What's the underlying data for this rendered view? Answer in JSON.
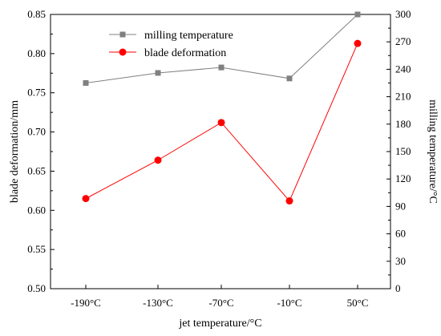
{
  "chart_data": {
    "type": "line",
    "categories": [
      "-190°C",
      "-130°C",
      "-70°C",
      "-10°C",
      "50°C"
    ],
    "xlabel": "jet temperature/°C",
    "ylabel_left": "blade deformation/mm",
    "ylabel_right": "milling temperature/°C",
    "y_left": {
      "lim": [
        0.5,
        0.85
      ],
      "ticks": [
        "0.50",
        "0.55",
        "0.60",
        "0.65",
        "0.70",
        "0.75",
        "0.80",
        "0.85"
      ]
    },
    "y_right": {
      "lim": [
        0,
        300
      ],
      "ticks": [
        "0",
        "30",
        "60",
        "90",
        "120",
        "150",
        "180",
        "210",
        "240",
        "270",
        "300"
      ]
    },
    "series": [
      {
        "name": "milling temperature",
        "axis": "right",
        "marker": "square",
        "color": "#808080",
        "values": [
          225,
          236,
          242,
          230,
          300
        ]
      },
      {
        "name": "blade deformation",
        "axis": "left",
        "marker": "circle",
        "color": "#ff0000",
        "values": [
          0.615,
          0.664,
          0.712,
          0.612,
          0.813
        ]
      }
    ],
    "legend_position": "top-center",
    "grid": false
  }
}
